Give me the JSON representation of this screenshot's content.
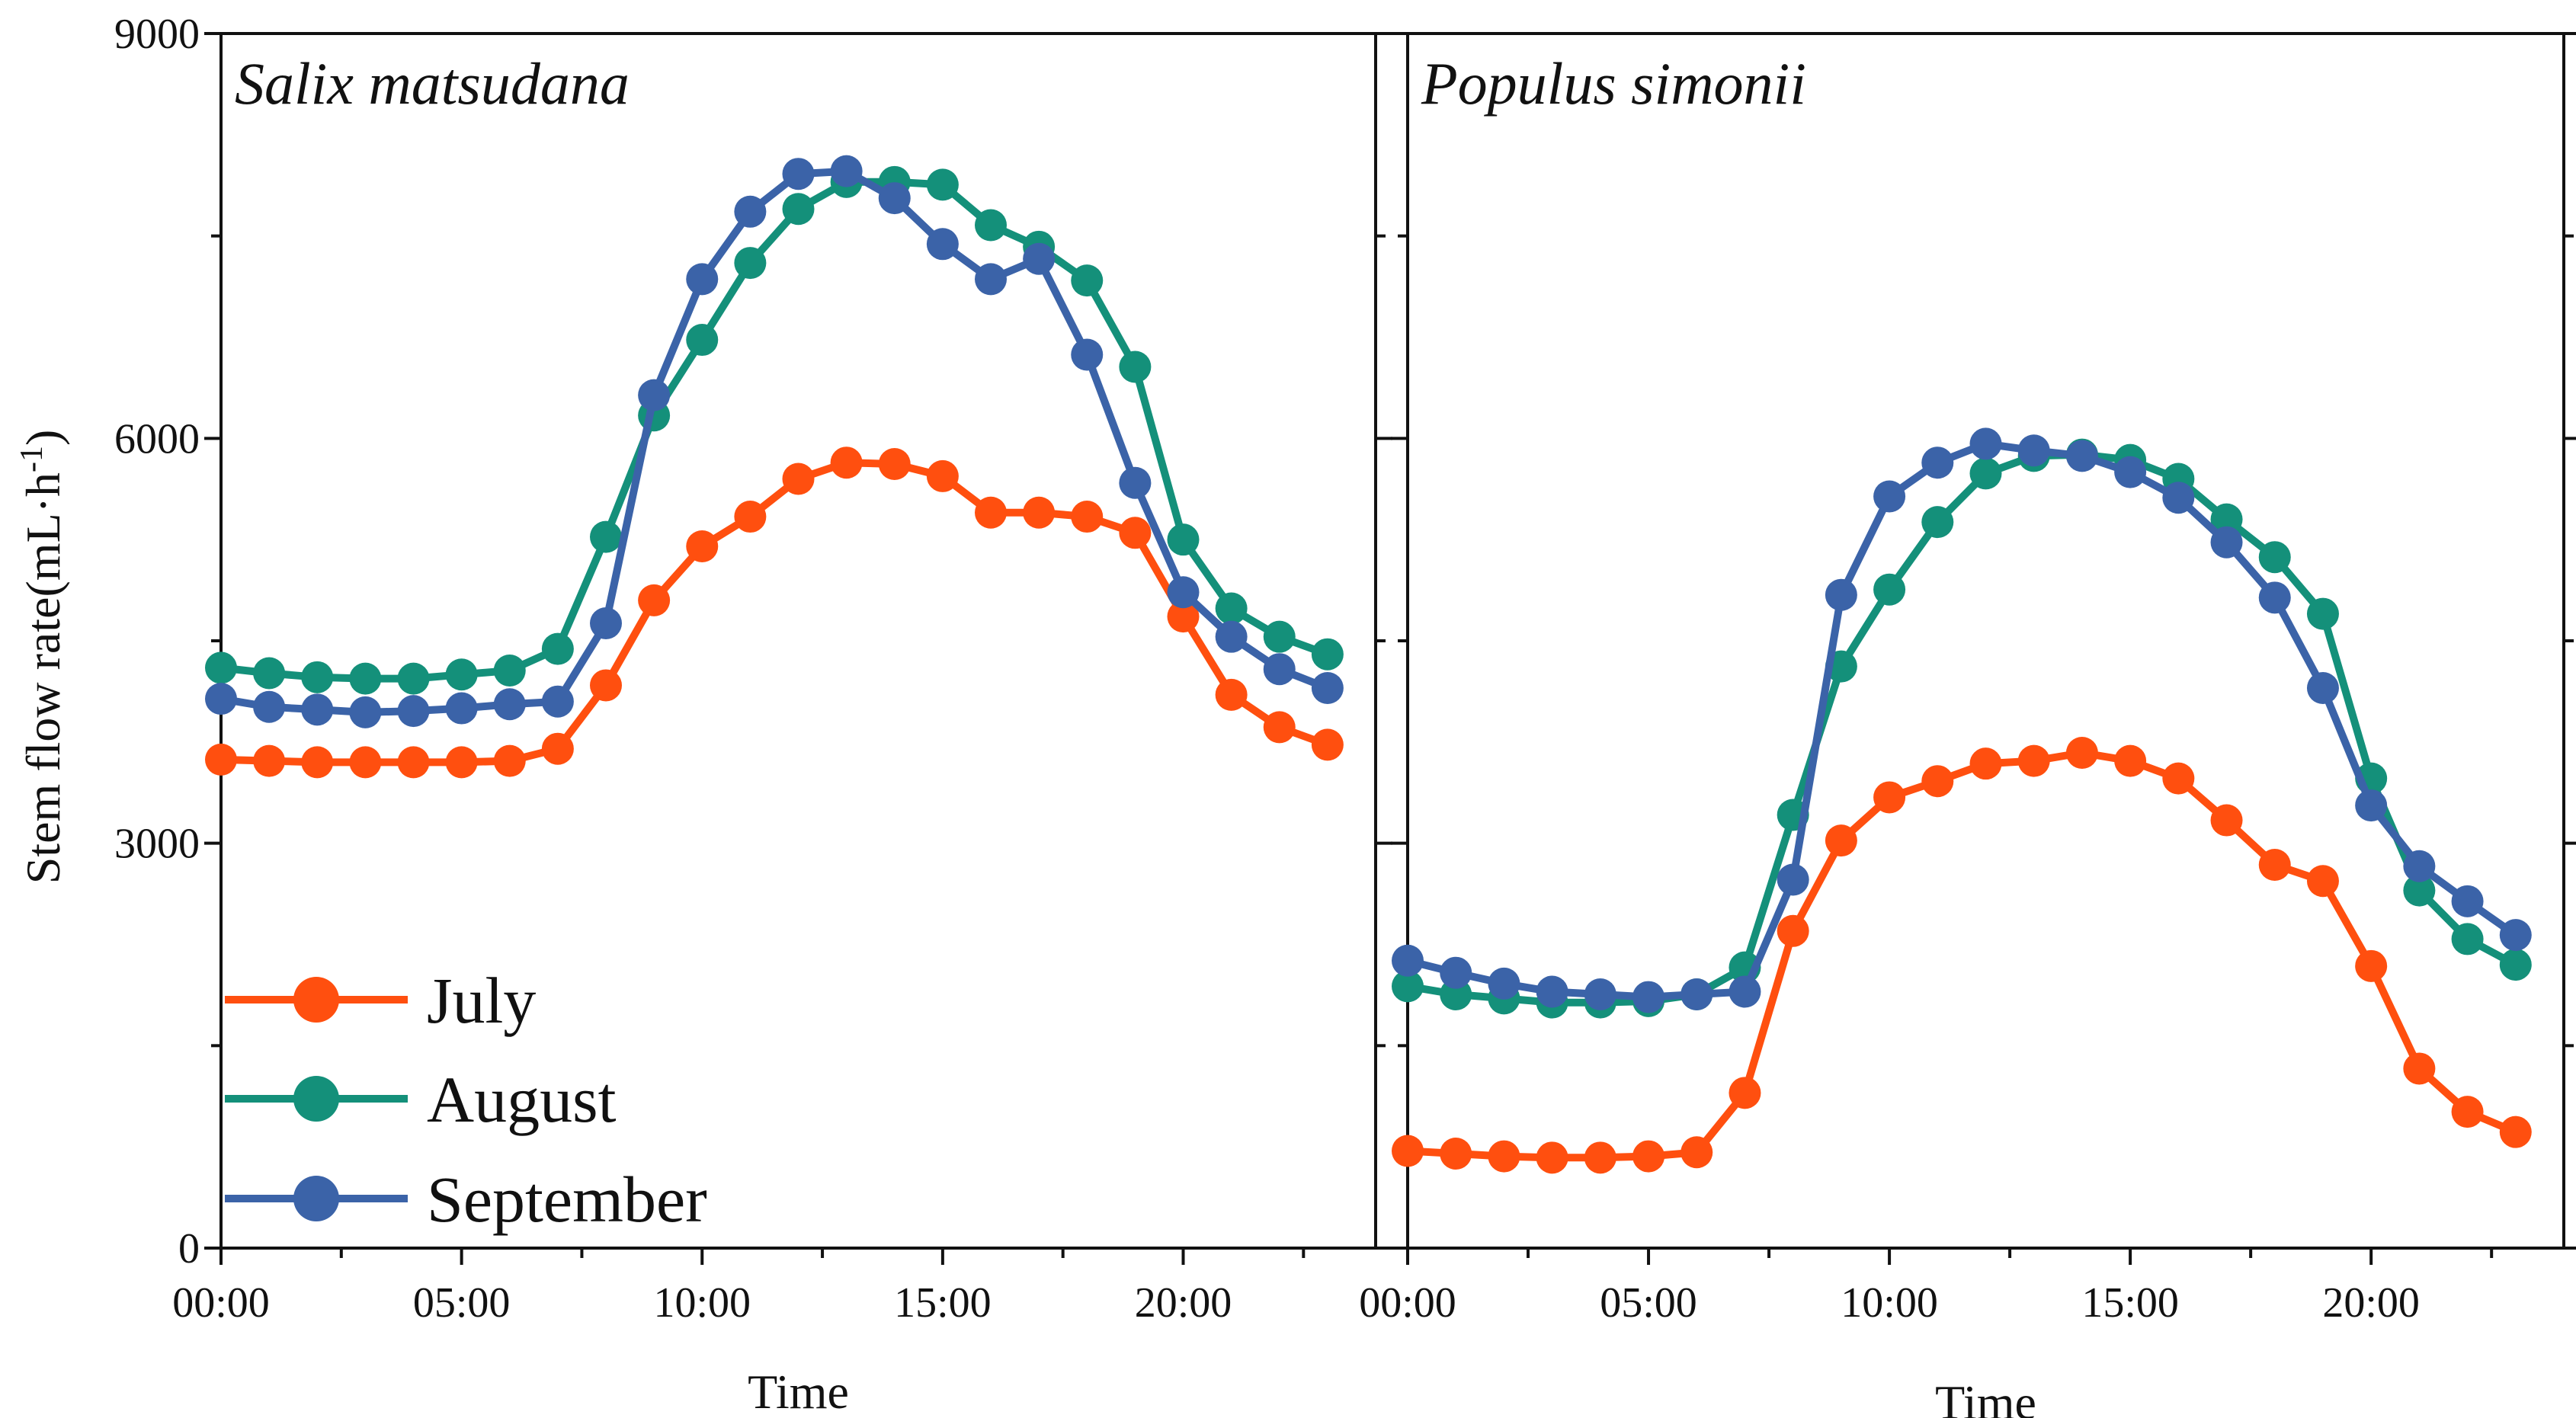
{
  "chart_data": {
    "type": "line",
    "ylabel": "Stem flow rate(mL·h⁻¹)",
    "ylabel_main": "Stem flow rate(mL·h",
    "ylabel_sup": "-1",
    "ylabel_close": ")",
    "xlabel": "Time",
    "ylim": [
      0,
      9000
    ],
    "yticks": [
      0,
      3000,
      6000,
      9000
    ],
    "ytick_labels": [
      "0",
      "3000",
      "6000",
      "9000"
    ],
    "xlim": [
      0,
      24
    ],
    "xticks": [
      0,
      5,
      10,
      15,
      20
    ],
    "xtick_labels": [
      "00:00",
      "05:00",
      "10:00",
      "15:00",
      "20:00"
    ],
    "x": [
      0,
      1,
      2,
      3,
      4,
      5,
      6,
      7,
      8,
      9,
      10,
      11,
      12,
      13,
      14,
      15,
      16,
      17,
      18,
      19,
      20,
      21,
      22,
      23
    ],
    "legend": {
      "position": "lower-left of left panel",
      "entries": [
        {
          "name": "July",
          "color": "#ff4f0f"
        },
        {
          "name": "August",
          "color": "#14907a"
        },
        {
          "name": "September",
          "color": "#3b63a8"
        }
      ]
    },
    "panels": [
      {
        "title": "Salix matsudana",
        "series": [
          {
            "name": "July",
            "color": "#ff4f0f",
            "values": [
              3620,
              3610,
              3600,
              3600,
              3600,
              3600,
              3610,
              3700,
              4170,
              4800,
              5200,
              5420,
              5700,
              5820,
              5810,
              5720,
              5450,
              5450,
              5420,
              5300,
              4680,
              4100,
              3860,
              3730
            ]
          },
          {
            "name": "August",
            "color": "#14907a",
            "values": [
              4300,
              4260,
              4230,
              4220,
              4220,
              4250,
              4280,
              4440,
              5270,
              6170,
              6730,
              7300,
              7700,
              7900,
              7900,
              7880,
              7580,
              7420,
              7170,
              6530,
              5250,
              4740,
              4530,
              4400
            ]
          },
          {
            "name": "September",
            "color": "#3b63a8",
            "values": [
              4070,
              4010,
              3990,
              3970,
              3980,
              4000,
              4030,
              4050,
              4630,
              6320,
              7180,
              7680,
              7960,
              7980,
              7780,
              7440,
              7180,
              7330,
              6620,
              5670,
              4860,
              4530,
              4290,
              4150
            ]
          }
        ]
      },
      {
        "title": "Populus simonii",
        "series": [
          {
            "name": "July",
            "color": "#ff4f0f",
            "values": [
              720,
              700,
              680,
              670,
              670,
              680,
              710,
              1150,
              2350,
              3020,
              3340,
              3460,
              3590,
              3610,
              3670,
              3610,
              3480,
              3170,
              2840,
              2720,
              2090,
              1330,
              1010,
              860
            ]
          },
          {
            "name": "August",
            "color": "#14907a",
            "values": [
              1940,
              1880,
              1850,
              1820,
              1820,
              1830,
              1880,
              2080,
              3210,
              4310,
              4880,
              5380,
              5740,
              5870,
              5880,
              5840,
              5700,
              5400,
              5120,
              4700,
              3480,
              2650,
              2290,
              2100
            ]
          },
          {
            "name": "September",
            "color": "#3b63a8",
            "values": [
              2130,
              2040,
              1960,
              1900,
              1880,
              1860,
              1880,
              1900,
              2730,
              4840,
              5570,
              5820,
              5960,
              5910,
              5870,
              5750,
              5560,
              5230,
              4820,
              4150,
              3280,
              2830,
              2570,
              2320
            ]
          }
        ]
      }
    ]
  }
}
